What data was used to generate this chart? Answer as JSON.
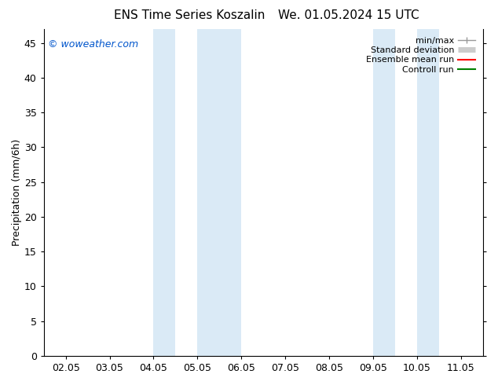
{
  "title_left": "ENS Time Series Koszalin",
  "title_right": "We. 01.05.2024 15 UTC",
  "ylabel": "Precipitation (mm/6h)",
  "watermark": "© woweather.com",
  "xtick_labels": [
    "02.05",
    "03.05",
    "04.05",
    "05.05",
    "06.05",
    "07.05",
    "08.05",
    "09.05",
    "10.05",
    "11.05"
  ],
  "xtick_positions": [
    0,
    1,
    2,
    3,
    4,
    5,
    6,
    7,
    8,
    9
  ],
  "ylim": [
    0,
    47
  ],
  "ytick_positions": [
    0,
    5,
    10,
    15,
    20,
    25,
    30,
    35,
    40,
    45
  ],
  "ytick_labels": [
    "0",
    "5",
    "10",
    "15",
    "20",
    "25",
    "30",
    "35",
    "40",
    "45"
  ],
  "shaded_bands": [
    {
      "x_start": 2.0,
      "x_end": 2.5,
      "color": "#daeaf6"
    },
    {
      "x_start": 3.0,
      "x_end": 4.0,
      "color": "#daeaf6"
    },
    {
      "x_start": 7.0,
      "x_end": 7.5,
      "color": "#daeaf6"
    },
    {
      "x_start": 8.0,
      "x_end": 8.5,
      "color": "#daeaf6"
    }
  ],
  "legend_entries": [
    {
      "label": "min/max",
      "color": "#999999",
      "linestyle": "-",
      "linewidth": 1.0,
      "type": "minmax"
    },
    {
      "label": "Standard deviation",
      "color": "#cccccc",
      "linestyle": "-",
      "linewidth": 5,
      "type": "std"
    },
    {
      "label": "Ensemble mean run",
      "color": "red",
      "linestyle": "-",
      "linewidth": 1.5,
      "type": "line"
    },
    {
      "label": "Controll run",
      "color": "green",
      "linestyle": "-",
      "linewidth": 1.5,
      "type": "line"
    }
  ],
  "background_color": "#ffffff",
  "plot_bg_color": "#ffffff",
  "title_fontsize": 11,
  "tick_fontsize": 9,
  "ylabel_fontsize": 9,
  "watermark_color": "#0055cc",
  "watermark_fontsize": 9
}
